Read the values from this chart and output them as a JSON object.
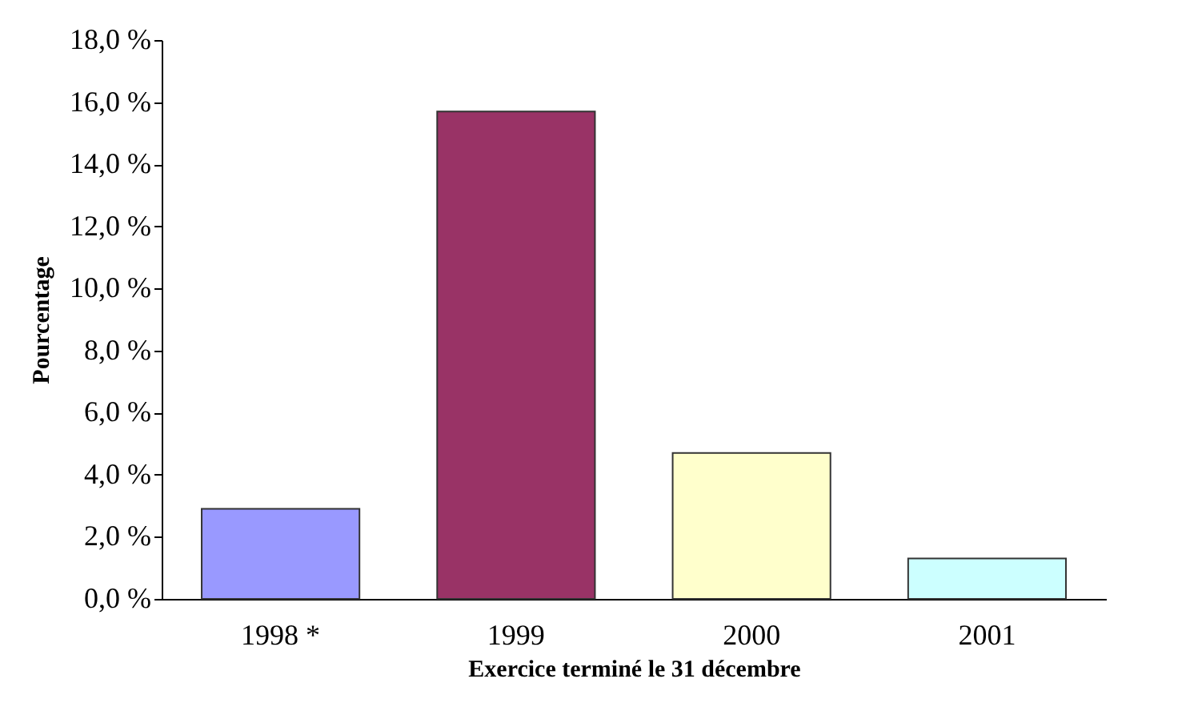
{
  "chart_data": {
    "type": "bar",
    "xlabel": "Exercice terminé le 31 décembre",
    "ylabel": "Pourcentage",
    "categories": [
      "1998 *",
      "1999",
      "2000",
      "2001"
    ],
    "values": [
      2.9,
      15.7,
      4.7,
      1.3
    ],
    "colors": [
      "#9999ff",
      "#993366",
      "#ffffcc",
      "#ccffff"
    ],
    "ylim": [
      0,
      18
    ],
    "yticks": [
      {
        "value": 0,
        "label": "0,0 %"
      },
      {
        "value": 2,
        "label": "2,0 %"
      },
      {
        "value": 4,
        "label": "4,0 %"
      },
      {
        "value": 6,
        "label": "6,0 %"
      },
      {
        "value": 8,
        "label": "8,0 %"
      },
      {
        "value": 10,
        "label": "10,0 %"
      },
      {
        "value": 12,
        "label": "12,0 %"
      },
      {
        "value": 14,
        "label": "14,0 %"
      },
      {
        "value": 16,
        "label": "16,0 %"
      },
      {
        "value": 18,
        "label": "18,0 %"
      }
    ],
    "grid": false
  }
}
